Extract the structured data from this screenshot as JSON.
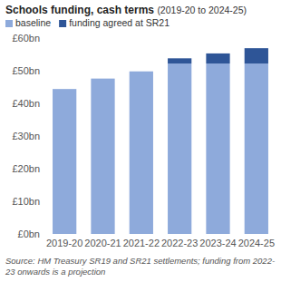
{
  "chart_data": {
    "type": "bar",
    "title": "Schools funding, cash terms",
    "subtitle": "(2019-20 to 2024-25)",
    "categories": [
      "2019-20",
      "2020-21",
      "2021-22",
      "2022-23",
      "2023-24",
      "2024-25"
    ],
    "series": [
      {
        "name": "baseline",
        "color": "#8eaadb",
        "values": [
          44.4,
          47.6,
          49.8,
          52.2,
          52.2,
          52.2
        ]
      },
      {
        "name": "funding agreed at SR21",
        "color": "#2e5597",
        "values": [
          null,
          null,
          null,
          1.6,
          3.1,
          4.7
        ]
      }
    ],
    "stacked": true,
    "ylim": [
      0,
      60
    ],
    "yticks": [
      {
        "value": 0,
        "label": "£0bn"
      },
      {
        "value": 10,
        "label": "£10bn"
      },
      {
        "value": 20,
        "label": "£20bn"
      },
      {
        "value": 30,
        "label": "£30bn"
      },
      {
        "value": 40,
        "label": "£40bn"
      },
      {
        "value": 50,
        "label": "£50bn"
      },
      {
        "value": 60,
        "label": "£60bn"
      }
    ],
    "grid": false,
    "legend": "top-left",
    "source": "Source: HM Treasury SR19 and SR21 settlements; funding from 2022-23 onwards is a projection"
  }
}
